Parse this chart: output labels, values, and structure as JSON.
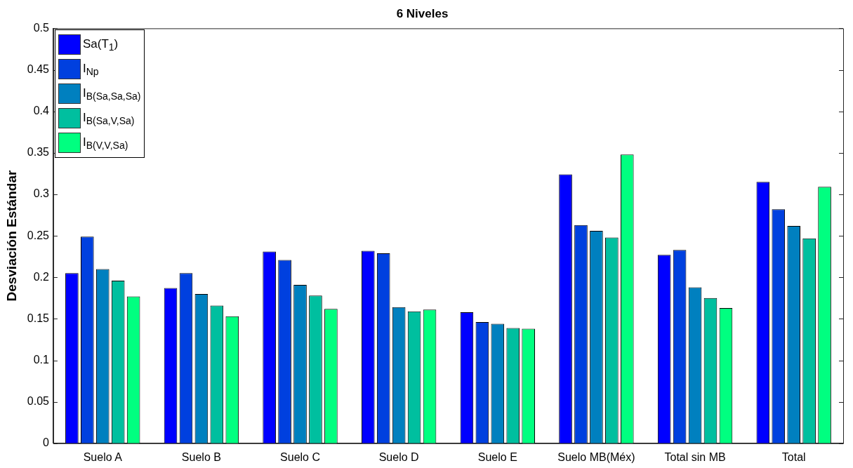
{
  "chart_data": {
    "type": "bar",
    "title": "6 Niveles",
    "ylabel": "Desviación Estándar",
    "categories": [
      "Suelo A",
      "Suelo B",
      "Suelo C",
      "Suelo D",
      "Suelo E",
      "Suelo MB(Méx)",
      "Total sin MB",
      "Total"
    ],
    "series": [
      {
        "name": "Sa(T$_{1}$)",
        "color": "#0000ff",
        "values": [
          0.205,
          0.187,
          0.231,
          0.232,
          0.158,
          0.324,
          0.227,
          0.315
        ]
      },
      {
        "name": "I$_{Np}$",
        "color": "#0040df",
        "values": [
          0.249,
          0.205,
          0.221,
          0.229,
          0.146,
          0.263,
          0.233,
          0.282
        ]
      },
      {
        "name": "I$_{B(Sa,Sa,Sa)}$",
        "color": "#0080bf",
        "values": [
          0.21,
          0.18,
          0.191,
          0.164,
          0.144,
          0.256,
          0.188,
          0.262
        ]
      },
      {
        "name": "I$_{B(Sa,V,Sa)}$",
        "color": "#00bf9f",
        "values": [
          0.196,
          0.166,
          0.178,
          0.159,
          0.139,
          0.248,
          0.175,
          0.247
        ]
      },
      {
        "name": "I$_{B(V,V,Sa)}$",
        "color": "#00ff80",
        "values": [
          0.177,
          0.153,
          0.162,
          0.161,
          0.138,
          0.348,
          0.163,
          0.309
        ]
      }
    ],
    "ylim": [
      0,
      0.5
    ],
    "yticks": [
      0,
      0.05,
      0.1,
      0.15,
      0.2,
      0.25,
      0.3,
      0.35,
      0.4,
      0.45,
      0.5
    ],
    "grid": false,
    "legend": "top left"
  }
}
